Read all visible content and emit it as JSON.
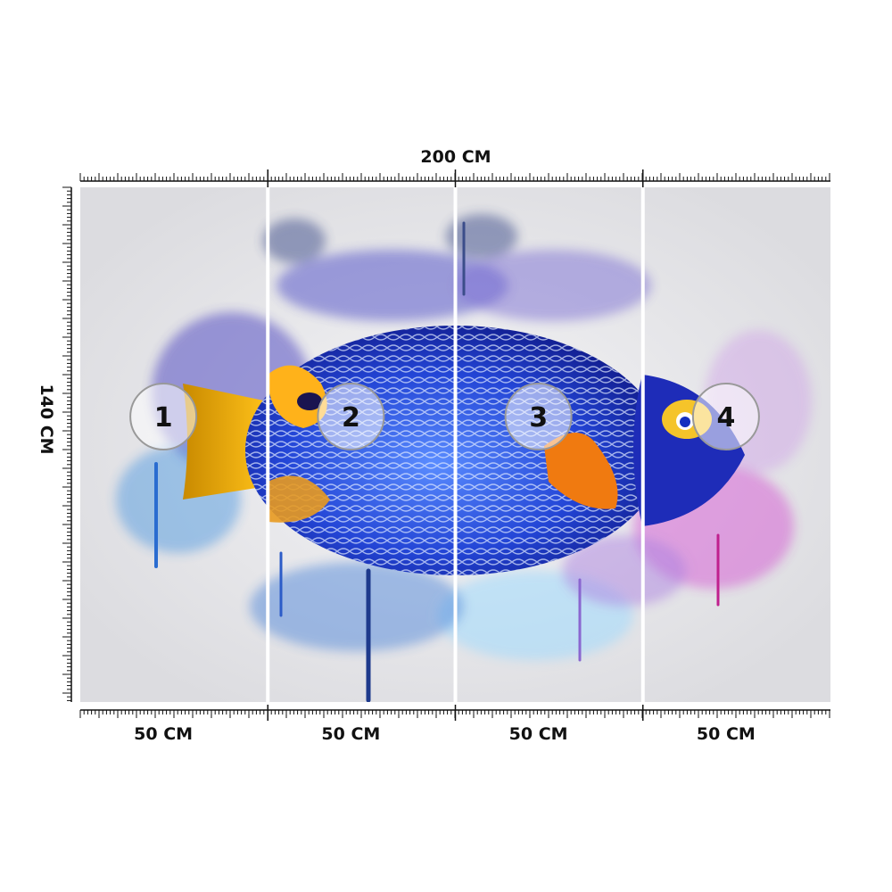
{
  "dimensions": {
    "width_label": "200 CM",
    "height_label": "140 CM"
  },
  "panels": [
    {
      "number": "1",
      "width_label": "50 CM"
    },
    {
      "number": "2",
      "width_label": "50 CM"
    },
    {
      "number": "3",
      "width_label": "50 CM"
    },
    {
      "number": "4",
      "width_label": "50 CM"
    }
  ]
}
